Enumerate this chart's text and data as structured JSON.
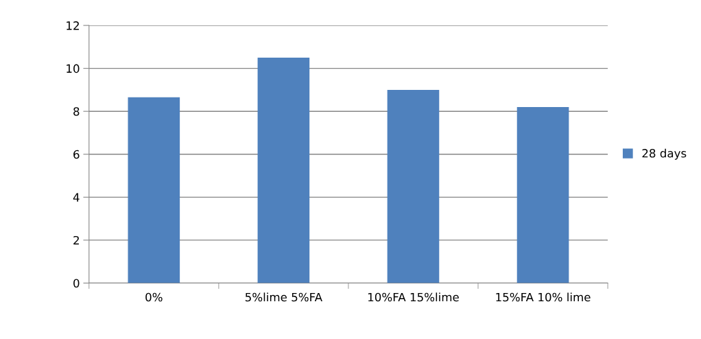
{
  "chart_data": {
    "type": "bar",
    "categories": [
      "0%",
      "5%lime 5%FA",
      "10%FA 15%lime",
      "15%FA 10% lime"
    ],
    "series": [
      {
        "name": "28 days",
        "color": "#4f81bd",
        "values": [
          8.65,
          10.5,
          9.0,
          8.2
        ]
      }
    ],
    "ylim": [
      0,
      12
    ],
    "yticks": [
      0,
      2,
      4,
      6,
      8,
      10,
      12
    ],
    "grid": "y",
    "legend": "right"
  }
}
